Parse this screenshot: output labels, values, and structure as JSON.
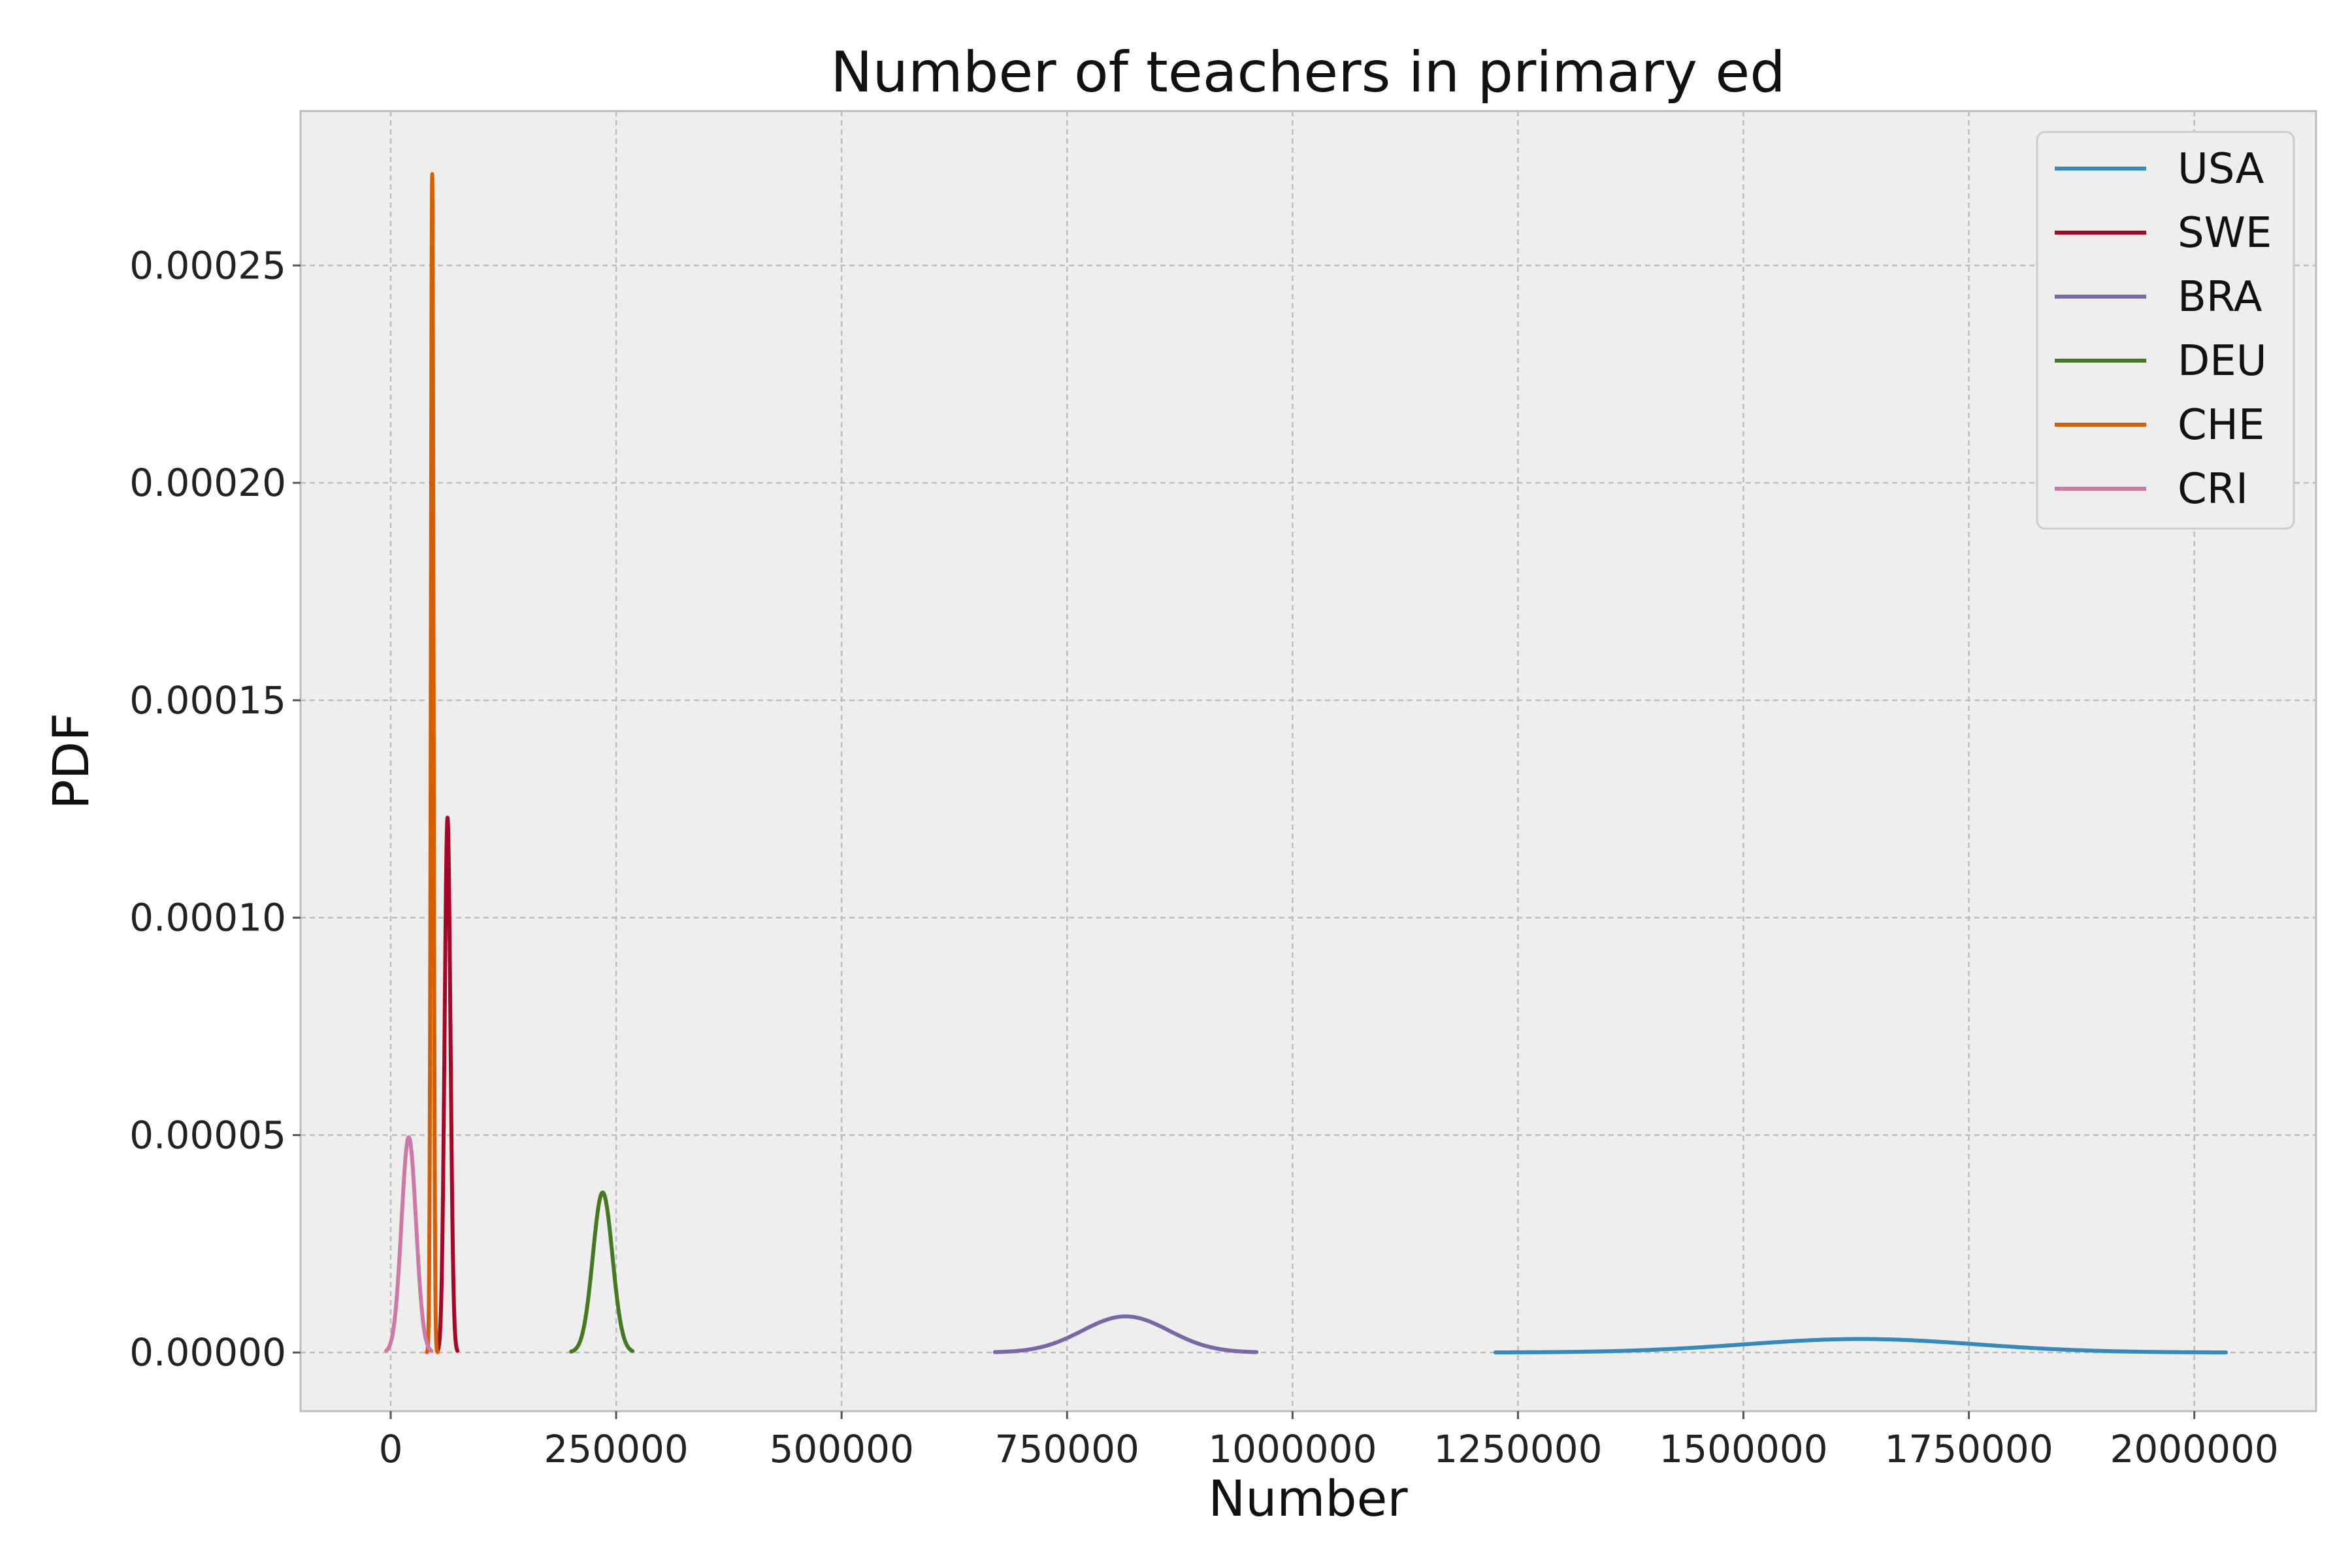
{
  "chart_data": {
    "type": "line",
    "title": "Number of teachers in primary ed",
    "xlabel": "Number",
    "ylabel": "PDF",
    "xlim": [
      -100000,
      2135000
    ],
    "ylim": [
      -1.35e-05,
      0.0002855
    ],
    "xticks": [
      0,
      250000,
      500000,
      750000,
      1000000,
      1250000,
      1500000,
      1750000,
      2000000
    ],
    "xtick_labels": [
      "0",
      "250000",
      "500000",
      "750000",
      "1000000",
      "1250000",
      "1500000",
      "1750000",
      "2000000"
    ],
    "yticks": [
      0,
      5e-05,
      0.0001,
      0.00015,
      0.0002,
      0.00025
    ],
    "ytick_labels": [
      "0.00000",
      "0.00005",
      "0.00010",
      "0.00015",
      "0.00020",
      "0.00025"
    ],
    "grid": true,
    "legend_position": "top-right",
    "series": [
      {
        "name": "USA",
        "color": "#348ABD",
        "mean": 1630000,
        "peak": 3.1e-06,
        "xmin": 1225000,
        "xmax": 2035000
      },
      {
        "name": "SWE",
        "color": "#A60628",
        "mean": 63000,
        "peak": 0.000123,
        "xmin": 52000,
        "xmax": 74000
      },
      {
        "name": "BRA",
        "color": "#7A68A6",
        "mean": 815000,
        "peak": 8.3e-06,
        "xmin": 670000,
        "xmax": 960000
      },
      {
        "name": "DEU",
        "color": "#467821",
        "mean": 235000,
        "peak": 3.68e-05,
        "xmin": 200000,
        "xmax": 268000
      },
      {
        "name": "CHE",
        "color": "#D55E00",
        "mean": 46000,
        "peak": 0.000271,
        "xmin": 40000,
        "xmax": 52000
      },
      {
        "name": "CRI",
        "color": "#CC79A7",
        "mean": 20000,
        "peak": 4.95e-05,
        "xmin": -5000,
        "xmax": 45000
      }
    ]
  }
}
